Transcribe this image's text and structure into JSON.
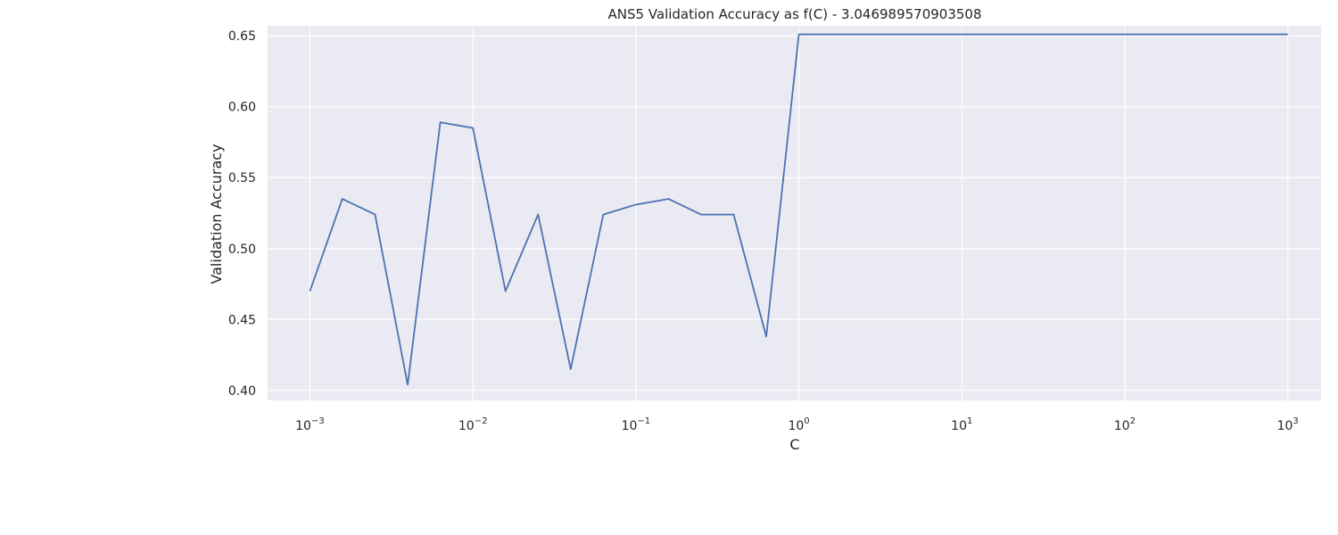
{
  "chart_data": {
    "type": "line",
    "title": "ANS5 Validation Accuracy as f(C) - 3.046989570903508",
    "xlabel": "C",
    "ylabel": "Validation Accuracy",
    "xscale": "log",
    "xlim": [
      0.00055,
      1600
    ],
    "ylim": [
      0.393,
      0.657
    ],
    "grid": true,
    "x_ticks": [
      {
        "base": "10",
        "exp": "−3",
        "value": 0.001
      },
      {
        "base": "10",
        "exp": "−2",
        "value": 0.01
      },
      {
        "base": "10",
        "exp": "−1",
        "value": 0.1
      },
      {
        "base": "10",
        "exp": "0",
        "value": 1
      },
      {
        "base": "10",
        "exp": "1",
        "value": 10
      },
      {
        "base": "10",
        "exp": "2",
        "value": 100
      },
      {
        "base": "10",
        "exp": "3",
        "value": 1000
      }
    ],
    "y_ticks": [
      "0.40",
      "0.45",
      "0.50",
      "0.55",
      "0.60",
      "0.65"
    ],
    "series": [
      {
        "color": "#4c72b0",
        "x": [
          0.001,
          0.00158,
          0.00251,
          0.00398,
          0.00631,
          0.01,
          0.01585,
          0.02512,
          0.03981,
          0.0631,
          0.1,
          0.1585,
          0.2512,
          0.3981,
          0.631,
          1.0,
          1000
        ],
        "y": [
          0.47,
          0.535,
          0.524,
          0.404,
          0.589,
          0.585,
          0.47,
          0.524,
          0.415,
          0.524,
          0.531,
          0.535,
          0.524,
          0.524,
          0.438,
          0.651,
          0.651
        ]
      }
    ]
  }
}
